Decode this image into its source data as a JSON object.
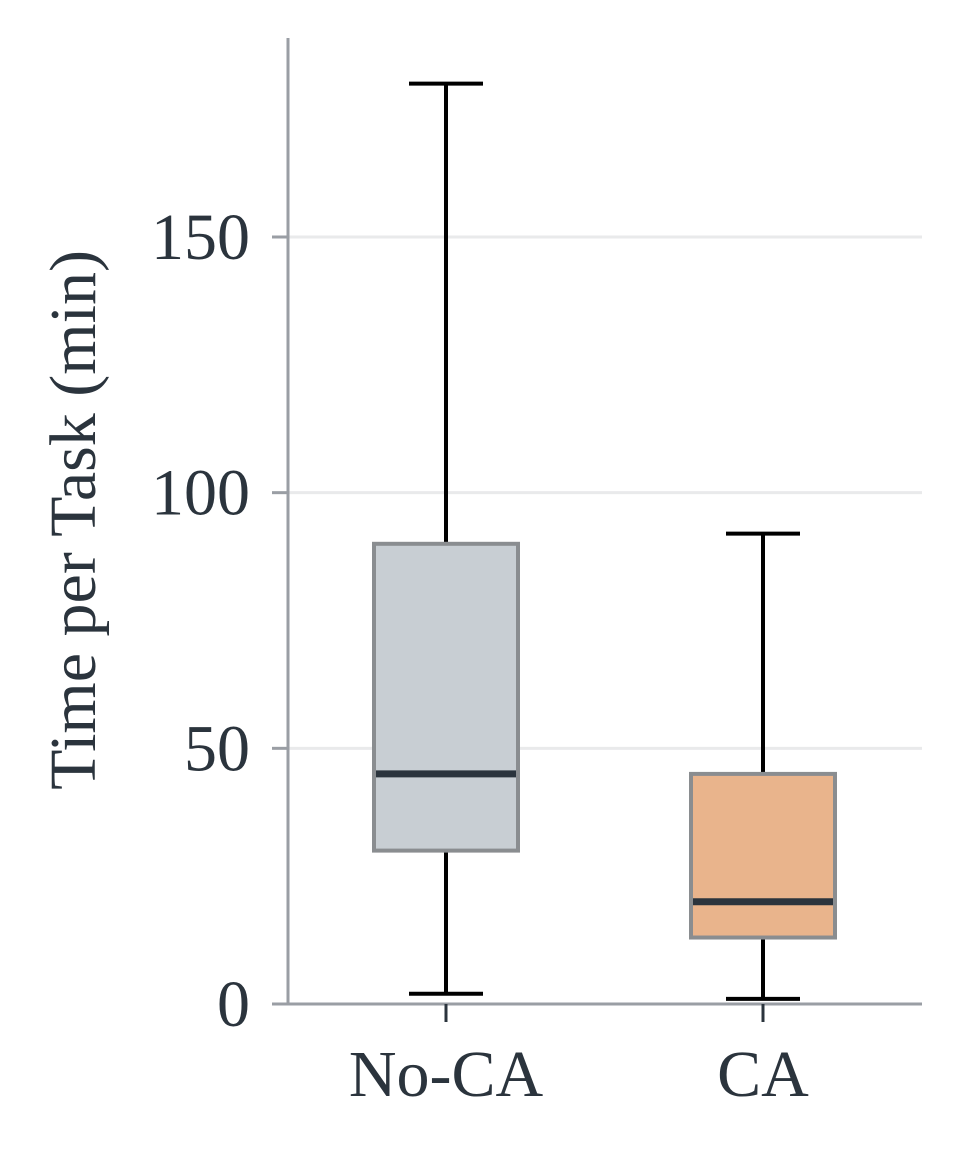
{
  "chart_data": {
    "type": "box",
    "categories": [
      "No-CA",
      "CA"
    ],
    "boxes": [
      {
        "category": "No-CA",
        "whisker_low": 2,
        "q1": 30,
        "median": 45,
        "q3": 90,
        "whisker_high": 180,
        "color": "#c8ced3",
        "edge_color": "#8a8d90"
      },
      {
        "category": "CA",
        "whisker_low": 1,
        "q1": 13,
        "median": 20,
        "q3": 45,
        "whisker_high": 92,
        "color": "#e9b48c",
        "edge_color": "#8a8d90"
      }
    ],
    "title": "",
    "xlabel": "",
    "ylabel": "Time per Task (min)",
    "ylim": [
      0,
      188
    ],
    "yticks": [
      0,
      50,
      100,
      150
    ],
    "grid": true,
    "colors": {
      "axis": "#9a9ea4",
      "grid": "#e9eaeb",
      "median": "#2b343d",
      "whisker": "#000000",
      "text": "#2b343d"
    }
  }
}
